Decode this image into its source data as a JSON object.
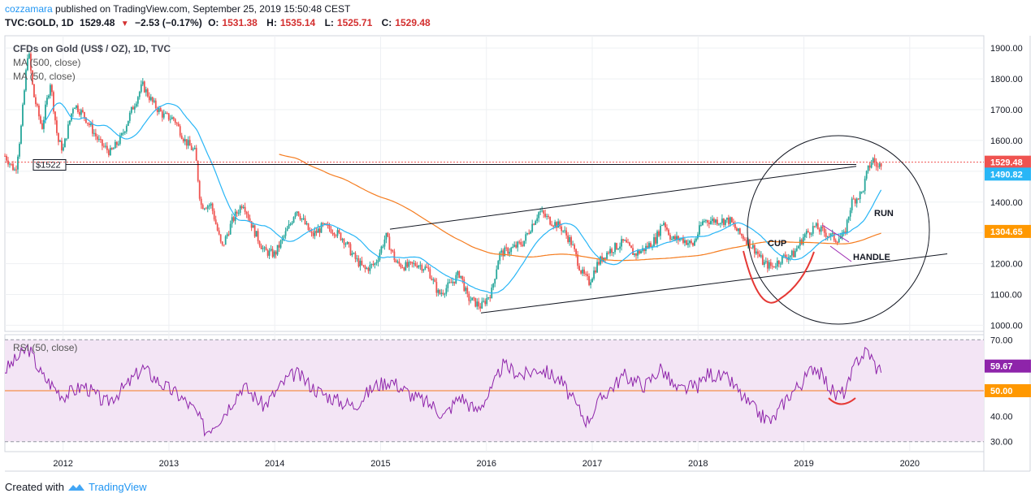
{
  "header": {
    "user": "cozzamara",
    "published_text": " published on TradingView.com, September 25, 2019 15:50:48 CEST",
    "symbol": "TVC:GOLD, 1D",
    "last": "1529.48",
    "change": "−2.53 (−0.17%)",
    "o_label": "O:",
    "o_value": "1531.38",
    "h_label": "H:",
    "h_value": "1535.14",
    "l_label": "L:",
    "l_value": "1525.71",
    "c_label": "C:",
    "c_value": "1529.48"
  },
  "legend": {
    "title": "CFDs on Gold (US$ / OZ), 1D, TVC",
    "ma500": "MA (500, close)",
    "ma50": "MA (50, close)",
    "rsi": "RSI (50, close)"
  },
  "footer": {
    "created_with": "Created with",
    "brand": "TradingView"
  },
  "colors": {
    "candle_up": "#26a69a",
    "candle_down": "#ef5350",
    "ma500": "#f57c1f",
    "ma50": "#29b6f6",
    "rsi": "#8e24aa",
    "rsi_band": "#f3e5f5",
    "price_badge": "#ef5350",
    "ma50_badge": "#29b6f6",
    "ma500_badge": "#ff9800"
  },
  "chart_data": [
    {
      "type": "candlestick",
      "title": "CFDs on Gold (US$ / OZ), 1D, TVC",
      "x_ticks": [
        "2012",
        "2013",
        "2014",
        "2015",
        "2016",
        "2017",
        "2018",
        "2019",
        "2020"
      ],
      "y_ticks": [
        "1000.00",
        "1100.00",
        "1200.00",
        "1300.00",
        "1400.00",
        "1500.00",
        "1600.00",
        "1700.00",
        "1800.00",
        "1900.00"
      ],
      "ylim": [
        980,
        1940
      ],
      "xlim": [
        2011.45,
        2020.7
      ],
      "price_path": [
        [
          2011.45,
          1550
        ],
        [
          2011.55,
          1500
        ],
        [
          2011.6,
          1630
        ],
        [
          2011.67,
          1900
        ],
        [
          2011.72,
          1750
        ],
        [
          2011.8,
          1640
        ],
        [
          2011.88,
          1790
        ],
        [
          2011.95,
          1600
        ],
        [
          2012.0,
          1570
        ],
        [
          2012.1,
          1720
        ],
        [
          2012.2,
          1680
        ],
        [
          2012.35,
          1590
        ],
        [
          2012.45,
          1560
        ],
        [
          2012.55,
          1610
        ],
        [
          2012.65,
          1700
        ],
        [
          2012.75,
          1780
        ],
        [
          2012.85,
          1720
        ],
        [
          2012.95,
          1680
        ],
        [
          2013.05,
          1670
        ],
        [
          2013.15,
          1600
        ],
        [
          2013.25,
          1560
        ],
        [
          2013.3,
          1390
        ],
        [
          2013.4,
          1390
        ],
        [
          2013.5,
          1250
        ],
        [
          2013.6,
          1340
        ],
        [
          2013.7,
          1400
        ],
        [
          2013.8,
          1310
        ],
        [
          2013.9,
          1240
        ],
        [
          2014.0,
          1230
        ],
        [
          2014.15,
          1330
        ],
        [
          2014.2,
          1380
        ],
        [
          2014.35,
          1290
        ],
        [
          2014.45,
          1320
        ],
        [
          2014.55,
          1310
        ],
        [
          2014.65,
          1280
        ],
        [
          2014.75,
          1220
        ],
        [
          2014.85,
          1180
        ],
        [
          2014.95,
          1200
        ],
        [
          2015.05,
          1290
        ],
        [
          2015.15,
          1200
        ],
        [
          2015.25,
          1190
        ],
        [
          2015.35,
          1200
        ],
        [
          2015.45,
          1180
        ],
        [
          2015.55,
          1100
        ],
        [
          2015.65,
          1130
        ],
        [
          2015.75,
          1170
        ],
        [
          2015.82,
          1090
        ],
        [
          2015.95,
          1060
        ],
        [
          2016.05,
          1110
        ],
        [
          2016.12,
          1230
        ],
        [
          2016.25,
          1250
        ],
        [
          2016.35,
          1270
        ],
        [
          2016.42,
          1320
        ],
        [
          2016.5,
          1370
        ],
        [
          2016.6,
          1340
        ],
        [
          2016.7,
          1320
        ],
        [
          2016.8,
          1270
        ],
        [
          2016.9,
          1170
        ],
        [
          2016.97,
          1140
        ],
        [
          2017.05,
          1200
        ],
        [
          2017.15,
          1240
        ],
        [
          2017.3,
          1270
        ],
        [
          2017.4,
          1230
        ],
        [
          2017.5,
          1250
        ],
        [
          2017.6,
          1280
        ],
        [
          2017.67,
          1340
        ],
        [
          2017.75,
          1280
        ],
        [
          2017.85,
          1280
        ],
        [
          2017.95,
          1260
        ],
        [
          2018.05,
          1340
        ],
        [
          2018.15,
          1340
        ],
        [
          2018.3,
          1340
        ],
        [
          2018.38,
          1300
        ],
        [
          2018.45,
          1280
        ],
        [
          2018.55,
          1240
        ],
        [
          2018.62,
          1200
        ],
        [
          2018.7,
          1190
        ],
        [
          2018.8,
          1220
        ],
        [
          2018.9,
          1230
        ],
        [
          2019.0,
          1290
        ],
        [
          2019.1,
          1320
        ],
        [
          2019.2,
          1300
        ],
        [
          2019.3,
          1280
        ],
        [
          2019.38,
          1290
        ],
        [
          2019.45,
          1400
        ],
        [
          2019.55,
          1430
        ],
        [
          2019.6,
          1500
        ],
        [
          2019.65,
          1540
        ],
        [
          2019.7,
          1510
        ],
        [
          2019.73,
          1529.48
        ]
      ],
      "ma50_last": 1490.82,
      "ma500_last": 1304.65,
      "last_price": 1529.48,
      "annotations": [
        "$1522",
        "CUP",
        "HANDLE",
        "RUN"
      ]
    },
    {
      "type": "line",
      "title": "RSI (50, close)",
      "y_ticks": [
        "30.00",
        "40.00",
        "50.00",
        "60.00",
        "70.00"
      ],
      "ylim": [
        28,
        72
      ],
      "levels": [
        70,
        50,
        30
      ],
      "last_value": 59.67,
      "level_label": "50.00",
      "rsi_path": [
        [
          2011.45,
          58
        ],
        [
          2011.6,
          64
        ],
        [
          2011.67,
          67
        ],
        [
          2011.8,
          56
        ],
        [
          2012.0,
          48
        ],
        [
          2012.2,
          52
        ],
        [
          2012.4,
          45
        ],
        [
          2012.6,
          52
        ],
        [
          2012.75,
          59
        ],
        [
          2012.95,
          52
        ],
        [
          2013.1,
          48
        ],
        [
          2013.25,
          42
        ],
        [
          2013.35,
          34
        ],
        [
          2013.5,
          40
        ],
        [
          2013.7,
          52
        ],
        [
          2013.9,
          44
        ],
        [
          2014.1,
          54
        ],
        [
          2014.2,
          57
        ],
        [
          2014.4,
          50
        ],
        [
          2014.6,
          46
        ],
        [
          2014.75,
          44
        ],
        [
          2014.95,
          52
        ],
        [
          2015.1,
          54
        ],
        [
          2015.3,
          48
        ],
        [
          2015.5,
          44
        ],
        [
          2015.6,
          40
        ],
        [
          2015.75,
          48
        ],
        [
          2015.9,
          42
        ],
        [
          2016.05,
          50
        ],
        [
          2016.15,
          60
        ],
        [
          2016.35,
          56
        ],
        [
          2016.5,
          59
        ],
        [
          2016.7,
          54
        ],
        [
          2016.85,
          44
        ],
        [
          2016.95,
          38
        ],
        [
          2017.1,
          48
        ],
        [
          2017.3,
          56
        ],
        [
          2017.5,
          52
        ],
        [
          2017.65,
          59
        ],
        [
          2017.8,
          50
        ],
        [
          2018.0,
          52
        ],
        [
          2018.1,
          57
        ],
        [
          2018.3,
          54
        ],
        [
          2018.45,
          46
        ],
        [
          2018.6,
          40
        ],
        [
          2018.7,
          38
        ],
        [
          2018.85,
          48
        ],
        [
          2019.0,
          54
        ],
        [
          2019.1,
          60
        ],
        [
          2019.2,
          54
        ],
        [
          2019.3,
          48
        ],
        [
          2019.4,
          50
        ],
        [
          2019.5,
          62
        ],
        [
          2019.6,
          66
        ],
        [
          2019.7,
          58
        ],
        [
          2019.73,
          59.67
        ]
      ]
    }
  ]
}
